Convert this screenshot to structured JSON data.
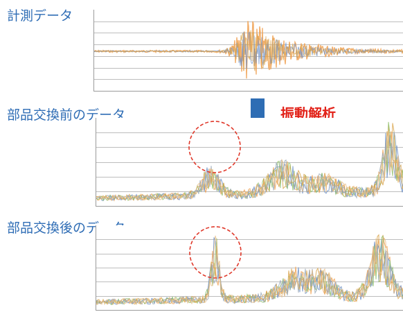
{
  "labels": {
    "measurement": "計測データ",
    "before": "部品交換前のデータ",
    "after": "部品交換後のデータ"
  },
  "analysis_label": "振動解析",
  "colors": {
    "label": "#2f6db5",
    "analysis": "#e2231a",
    "arrow": "#2e6db4",
    "circle": "#e0392b",
    "series": [
      "#f0a050",
      "#6c8fc7",
      "#8fbf6a",
      "#d9a54c",
      "#9aa9b8",
      "#e8c08a"
    ]
  }
}
